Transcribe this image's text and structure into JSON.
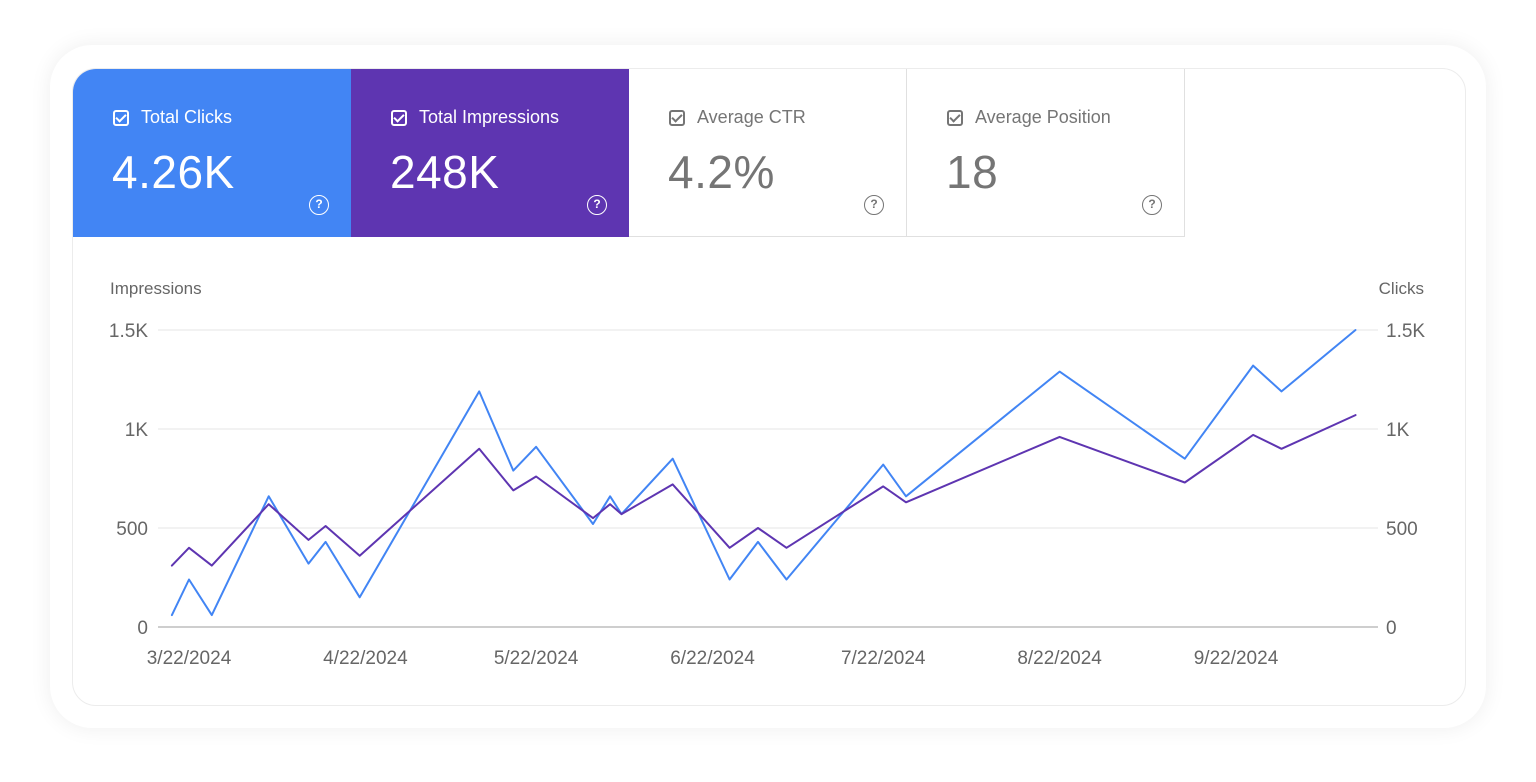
{
  "metrics": [
    {
      "label": "Total Clicks",
      "value": "4.26K",
      "color": "#4285f4",
      "active": true
    },
    {
      "label": "Total Impressions",
      "value": "248K",
      "color": "#5e35b1",
      "active": true
    },
    {
      "label": "Average CTR",
      "value": "4.2%",
      "active": false
    },
    {
      "label": "Average Position",
      "value": "18",
      "active": false
    }
  ],
  "help_icon_glyph": "?",
  "chart_data": {
    "type": "line",
    "ylabel_left": "Impressions",
    "ylabel_right": "Clicks",
    "yticks_left": [
      "0",
      "500",
      "1K",
      "1.5K"
    ],
    "yticks_right": [
      "0",
      "500",
      "1K",
      "1.5K"
    ],
    "ylim": [
      0,
      1500
    ],
    "x_range": [
      "2024-03-22",
      "2024-10-22"
    ],
    "xticks": [
      {
        "date": "2024-03-22",
        "label": "3/22/2024"
      },
      {
        "date": "2024-04-22",
        "label": "4/22/2024"
      },
      {
        "date": "2024-05-22",
        "label": "5/22/2024"
      },
      {
        "date": "2024-06-22",
        "label": "6/22/2024"
      },
      {
        "date": "2024-07-22",
        "label": "7/22/2024"
      },
      {
        "date": "2024-08-22",
        "label": "8/22/2024"
      },
      {
        "date": "2024-09-22",
        "label": "9/22/2024"
      }
    ],
    "series": [
      {
        "color": "#4285f4",
        "points": [
          [
            "2024-03-19",
            60
          ],
          [
            "2024-03-22",
            240
          ],
          [
            "2024-03-26",
            60
          ],
          [
            "2024-04-05",
            660
          ],
          [
            "2024-04-12",
            320
          ],
          [
            "2024-04-15",
            430
          ],
          [
            "2024-04-21",
            150
          ],
          [
            "2024-05-12",
            1190
          ],
          [
            "2024-05-18",
            790
          ],
          [
            "2024-05-22",
            910
          ],
          [
            "2024-06-01",
            520
          ],
          [
            "2024-06-04",
            660
          ],
          [
            "2024-06-06",
            570
          ],
          [
            "2024-06-15",
            850
          ],
          [
            "2024-06-25",
            240
          ],
          [
            "2024-06-30",
            430
          ],
          [
            "2024-07-05",
            240
          ],
          [
            "2024-07-22",
            820
          ],
          [
            "2024-07-26",
            660
          ],
          [
            "2024-08-22",
            1290
          ],
          [
            "2024-09-13",
            850
          ],
          [
            "2024-09-25",
            1320
          ],
          [
            "2024-09-30",
            1190
          ],
          [
            "2024-10-13",
            1500
          ]
        ]
      },
      {
        "color": "#5e35b1",
        "points": [
          [
            "2024-03-19",
            310
          ],
          [
            "2024-03-22",
            400
          ],
          [
            "2024-03-26",
            310
          ],
          [
            "2024-04-05",
            620
          ],
          [
            "2024-04-12",
            440
          ],
          [
            "2024-04-15",
            510
          ],
          [
            "2024-04-21",
            360
          ],
          [
            "2024-05-12",
            900
          ],
          [
            "2024-05-18",
            690
          ],
          [
            "2024-05-22",
            760
          ],
          [
            "2024-06-01",
            550
          ],
          [
            "2024-06-04",
            620
          ],
          [
            "2024-06-06",
            570
          ],
          [
            "2024-06-15",
            720
          ],
          [
            "2024-06-25",
            400
          ],
          [
            "2024-06-30",
            500
          ],
          [
            "2024-07-05",
            400
          ],
          [
            "2024-07-22",
            710
          ],
          [
            "2024-07-26",
            630
          ],
          [
            "2024-08-22",
            960
          ],
          [
            "2024-09-13",
            730
          ],
          [
            "2024-09-25",
            970
          ],
          [
            "2024-09-30",
            900
          ],
          [
            "2024-10-13",
            1070
          ]
        ]
      }
    ]
  }
}
